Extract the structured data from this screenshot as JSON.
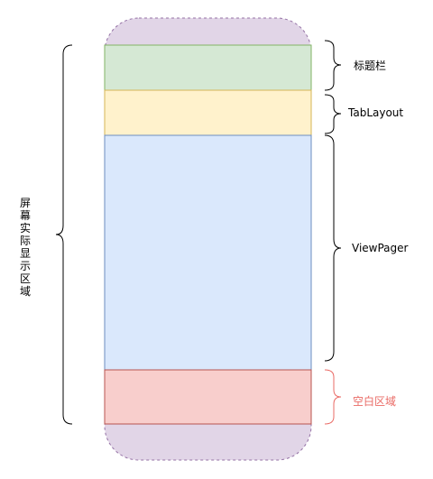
{
  "labels": {
    "title_bar": "标题栏",
    "tab_layout": "TabLayout",
    "view_pager": "ViewPager",
    "blank_area": "空白区域",
    "screen_area": [
      "屏",
      "幕",
      "实",
      "际",
      "显",
      "示",
      "区",
      "域"
    ]
  },
  "colors": {
    "phone_fill": "#e1d5e7",
    "phone_stroke": "#9673a6",
    "title_fill": "#d5e8d4",
    "title_stroke": "#82b366",
    "tab_fill": "#fff2cc",
    "tab_stroke": "#d6b656",
    "pager_fill": "#dae8fc",
    "pager_stroke": "#6c8ebf",
    "blank_fill": "#f8cecc",
    "blank_stroke": "#b85450",
    "blank_label": "#ea6b66",
    "brace_black": "#000000",
    "brace_red": "#ea6b66"
  }
}
